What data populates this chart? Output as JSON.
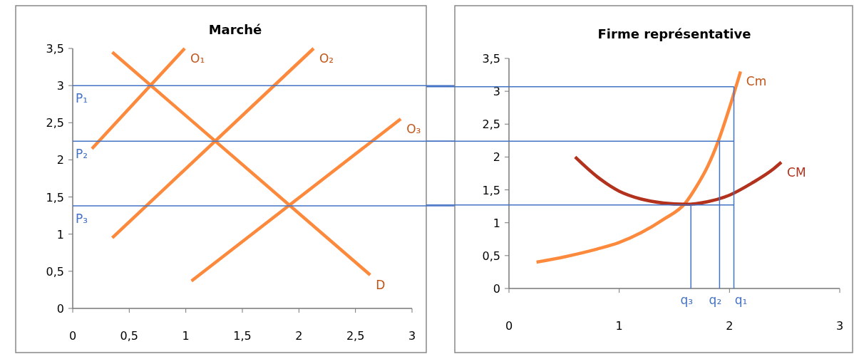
{
  "chart_data": [
    {
      "type": "line",
      "title": "Marché",
      "xlim": [
        0,
        3
      ],
      "ylim": [
        0,
        3.5
      ],
      "xticks": [
        0,
        {
          "value": 0.5,
          "label": "0,5"
        },
        1,
        {
          "value": 1.5,
          "label": "1,5"
        },
        2,
        {
          "value": 2.5,
          "label": "2,5"
        },
        3
      ],
      "yticks": [
        0,
        {
          "value": 0.5,
          "label": "0,5"
        },
        1,
        {
          "value": 1.5,
          "label": "1,5"
        },
        2,
        {
          "value": 2.5,
          "label": "2,5"
        },
        3,
        {
          "value": 3.5,
          "label": "3,5"
        }
      ],
      "grid": false,
      "marker": "none",
      "line_style": "solid",
      "series": [
        {
          "name": "O₁",
          "color": "#fd8a3c",
          "x": [
            0.17,
            0.99
          ],
          "values": [
            2.15,
            3.5
          ]
        },
        {
          "name": "O₂",
          "color": "#fd8a3c",
          "x": [
            0.35,
            2.13
          ],
          "values": [
            0.95,
            3.5
          ]
        },
        {
          "name": "O₃",
          "color": "#fd8a3c",
          "x": [
            1.05,
            2.9
          ],
          "values": [
            0.37,
            2.55
          ]
        },
        {
          "name": "D",
          "color": "#fd8a3c",
          "x": [
            0.35,
            2.63
          ],
          "values": [
            3.45,
            0.45
          ]
        }
      ],
      "ref_lines": [
        {
          "axis": "y",
          "value": 3,
          "label": "P₁",
          "color": "#4472c4"
        },
        {
          "axis": "y",
          "value": 2.25,
          "label": "P₂",
          "color": "#4472c4"
        },
        {
          "axis": "y",
          "value": 1.38,
          "label": "P₃",
          "color": "#4472c4"
        }
      ]
    },
    {
      "type": "line",
      "title": "Firme représentative",
      "xlim": [
        0,
        3
      ],
      "ylim": [
        0,
        3.5
      ],
      "xticks": [
        0,
        1,
        2,
        3
      ],
      "yticks": [
        0,
        {
          "value": 0.5,
          "label": "0,5"
        },
        1,
        {
          "value": 1.5,
          "label": "1,5"
        },
        2,
        {
          "value": 2.5,
          "label": "2,5"
        },
        3,
        {
          "value": 3.5,
          "label": "3,5"
        }
      ],
      "grid": false,
      "marker": "none",
      "line_style": "solid",
      "series": [
        {
          "name": "Cm",
          "color": "#fd8a3c",
          "x": [
            0.25,
            0.5,
            0.8,
            1.0,
            1.2,
            1.4,
            1.6,
            1.7,
            1.8,
            1.9,
            2.0,
            2.1
          ],
          "values": [
            0.4,
            0.48,
            0.6,
            0.7,
            0.85,
            1.05,
            1.3,
            1.55,
            1.85,
            2.25,
            2.75,
            3.3
          ]
        },
        {
          "name": "CM",
          "color": "#b3321e",
          "x": [
            0.6,
            0.8,
            1.0,
            1.2,
            1.4,
            1.6,
            1.8,
            2.0,
            2.2,
            2.4,
            2.47
          ],
          "values": [
            2.0,
            1.7,
            1.48,
            1.36,
            1.3,
            1.28,
            1.32,
            1.42,
            1.6,
            1.82,
            1.92
          ]
        }
      ],
      "ref_lines": [
        {
          "axis": "y",
          "value": 3.07,
          "color": "#4472c4"
        },
        {
          "axis": "y",
          "value": 2.24,
          "color": "#4472c4"
        },
        {
          "axis": "y",
          "value": 1.27,
          "color": "#4472c4"
        },
        {
          "axis": "x",
          "value": 2.04,
          "label": "q₁",
          "color": "#4472c4"
        },
        {
          "axis": "x",
          "value": 1.91,
          "label": "q₂",
          "color": "#4472c4"
        },
        {
          "axis": "x",
          "value": 1.65,
          "label": "q₃",
          "color": "#4472c4"
        }
      ]
    }
  ]
}
